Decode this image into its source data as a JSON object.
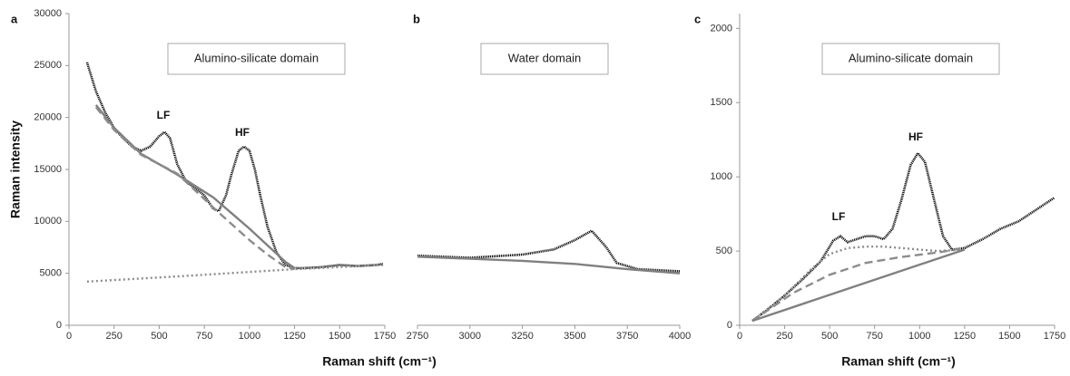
{
  "chart_data": [
    {
      "type": "line",
      "panel_label": "a",
      "box_text": "Alumino-silicate domain",
      "annotations": [
        "LF",
        "HF"
      ],
      "y_label": "Raman intensity",
      "x_label": "Raman shift  (cm⁻¹)",
      "xlim": [
        0,
        1750
      ],
      "xticks": [
        0,
        250,
        500,
        750,
        1000,
        1250,
        1500,
        1750
      ],
      "ylim": [
        0,
        30000
      ],
      "yticks": [
        0,
        5000,
        10000,
        15000,
        20000,
        25000,
        30000
      ],
      "series": [
        {
          "color": "#111111",
          "dash": "dots",
          "x": [
            100,
            150,
            200,
            250,
            300,
            350,
            400,
            450,
            500,
            530,
            560,
            600,
            650,
            700,
            750,
            800,
            830,
            870,
            900,
            940,
            970,
            1000,
            1030,
            1060,
            1100,
            1150,
            1200,
            1250,
            1300,
            1400,
            1500,
            1600,
            1700,
            1740
          ],
          "values": [
            25300,
            22500,
            20500,
            19000,
            18000,
            17200,
            16800,
            17200,
            18200,
            18600,
            18000,
            15500,
            13800,
            13200,
            12500,
            11200,
            11000,
            12500,
            14500,
            16800,
            17200,
            16800,
            15000,
            12500,
            9500,
            7000,
            5800,
            5500,
            5500,
            5600,
            5800,
            5700,
            5800,
            5900
          ]
        },
        {
          "color": "#808080",
          "dash": "solid",
          "x": [
            150,
            250,
            400,
            600,
            800,
            900,
            1000,
            1100,
            1200,
            1250
          ],
          "values": [
            21200,
            19000,
            16500,
            14500,
            12300,
            10800,
            9300,
            7700,
            6100,
            5500
          ]
        },
        {
          "color": "#8c8c8c",
          "dash": "dashed",
          "x": [
            150,
            250,
            400,
            600,
            820,
            1000,
            1100,
            1200,
            1250
          ],
          "values": [
            21000,
            18800,
            16400,
            14600,
            11000,
            8200,
            6800,
            5600,
            5400
          ]
        },
        {
          "color": "#8c8c8c",
          "dash": "dotted",
          "x": [
            100,
            600,
            1250,
            1740
          ],
          "values": [
            4200,
            4700,
            5400,
            5800
          ]
        }
      ]
    },
    {
      "type": "line",
      "panel_label": "b",
      "box_text": "Water domain",
      "xlim": [
        2750,
        4000
      ],
      "xticks": [
        2750,
        3000,
        3250,
        3500,
        3750,
        4000
      ],
      "ylim": [
        0,
        30000
      ],
      "series": [
        {
          "color": "#111111",
          "dash": "dots",
          "x": [
            2750,
            3000,
            3250,
            3400,
            3500,
            3580,
            3650,
            3700,
            3800,
            4000
          ],
          "values": [
            6700,
            6500,
            6800,
            7300,
            8200,
            9100,
            7500,
            6000,
            5400,
            5200
          ]
        },
        {
          "color": "#808080",
          "dash": "solid",
          "x": [
            2750,
            3000,
            3250,
            3500,
            3750,
            4000
          ],
          "values": [
            6600,
            6400,
            6200,
            5900,
            5400,
            5000
          ]
        }
      ]
    },
    {
      "type": "line",
      "panel_label": "c",
      "box_text": "Alumino-silicate domain",
      "annotations": [
        "LF",
        "HF"
      ],
      "x_label": "Raman shift  (cm⁻¹)",
      "xlim": [
        0,
        1750
      ],
      "xticks": [
        0,
        250,
        500,
        750,
        1000,
        1250,
        1500,
        1750
      ],
      "ylim": [
        0,
        2100
      ],
      "yticks": [
        0,
        500,
        1000,
        1500,
        2000
      ],
      "series": [
        {
          "color": "#111111",
          "dash": "dots",
          "x": [
            70,
            150,
            250,
            350,
            450,
            520,
            560,
            600,
            650,
            700,
            750,
            800,
            850,
            900,
            950,
            990,
            1030,
            1080,
            1130,
            1180,
            1250,
            1350,
            1450,
            1550,
            1650,
            1750
          ],
          "values": [
            30,
            100,
            200,
            310,
            430,
            570,
            600,
            560,
            580,
            600,
            600,
            580,
            650,
            850,
            1080,
            1160,
            1100,
            850,
            600,
            510,
            520,
            580,
            650,
            700,
            780,
            860
          ]
        },
        {
          "color": "#8c8c8c",
          "dash": "dotted",
          "x": [
            70,
            250,
            400,
            500,
            600,
            700,
            800,
            900,
            1000,
            1100,
            1250
          ],
          "values": [
            30,
            200,
            380,
            480,
            520,
            530,
            530,
            520,
            510,
            500,
            510
          ]
        },
        {
          "color": "#8c8c8c",
          "dash": "dashed",
          "x": [
            70,
            300,
            500,
            700,
            900,
            1100,
            1250
          ],
          "values": [
            30,
            220,
            340,
            420,
            460,
            490,
            520
          ]
        },
        {
          "color": "#808080",
          "dash": "solid",
          "x": [
            70,
            1250
          ],
          "values": [
            30,
            510
          ]
        }
      ]
    }
  ]
}
